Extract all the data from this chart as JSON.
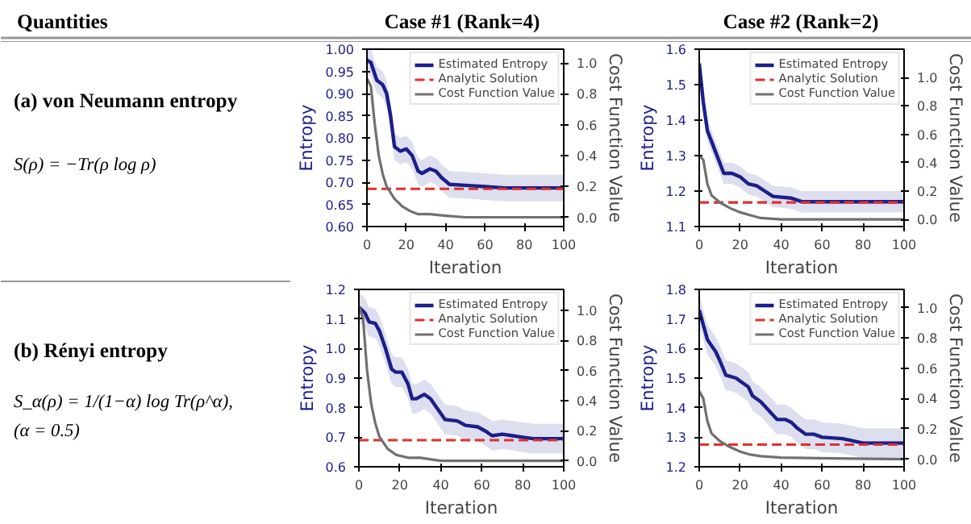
{
  "chart_data": [
    {
      "type": "other",
      "annotations": [
        "Quantities",
        "Case #1 (Rank=4)",
        "Case #2 (Rank=2)",
        "(a) von Neumann entropy",
        "S(ρ) = −Tr(ρ log ρ)",
        "(b) Rényi entropy",
        "S_α(ρ) = 1/(1−α) log Tr(ρ^α),",
        "(α = 0.5)"
      ]
    },
    {
      "type": "line",
      "xlabel": "Iteration",
      "ylabel": "Entropy",
      "y2label": "Cost Function Value",
      "xlim": [
        0,
        100
      ],
      "xticks": [
        0,
        20,
        40,
        60,
        80,
        100
      ],
      "ylim": [
        0.6,
        1.0
      ],
      "yticks": [
        {
          "value": 0.6,
          "label": "0.60"
        },
        {
          "value": 0.65,
          "label": "0.65"
        },
        {
          "value": 0.7,
          "label": "0.70"
        },
        {
          "value": 0.75,
          "label": "0.75"
        },
        {
          "value": 0.8,
          "label": "0.80"
        },
        {
          "value": 0.85,
          "label": "0.85"
        },
        {
          "value": 0.9,
          "label": "0.90"
        },
        {
          "value": 0.95,
          "label": "0.95"
        },
        {
          "value": 1.0,
          "label": "1.00"
        }
      ],
      "y2lim": [
        -0.06,
        1.09
      ],
      "y2ticks": [
        {
          "value": 0,
          "label": "0.0"
        },
        {
          "value": 0.2,
          "label": "0.2"
        },
        {
          "value": 0.4,
          "label": "0.4"
        },
        {
          "value": 0.6,
          "label": "0.6"
        },
        {
          "value": 0.8,
          "label": "0.8"
        },
        {
          "value": 1,
          "label": "1.0"
        }
      ],
      "grid": false,
      "legend": "top right",
      "series": [
        {
          "name": "Estimated Entropy",
          "color": "#1a1f8a",
          "x": [
            0,
            2,
            5,
            8,
            10,
            12,
            14,
            17,
            20,
            23,
            26,
            28,
            32,
            35,
            38,
            42,
            50,
            60,
            70,
            80,
            100
          ],
          "values": [
            0.975,
            0.97,
            0.93,
            0.92,
            0.9,
            0.85,
            0.78,
            0.77,
            0.775,
            0.76,
            0.725,
            0.72,
            0.73,
            0.725,
            0.71,
            0.695,
            0.693,
            0.69,
            0.687,
            0.687,
            0.687
          ],
          "lower": [
            0.945,
            0.94,
            0.9,
            0.89,
            0.87,
            0.82,
            0.75,
            0.74,
            0.745,
            0.73,
            0.695,
            0.69,
            0.7,
            0.695,
            0.68,
            0.665,
            0.663,
            0.66,
            0.657,
            0.657,
            0.657
          ],
          "upper": [
            1.0,
            1.0,
            0.96,
            0.95,
            0.93,
            0.88,
            0.81,
            0.8,
            0.805,
            0.79,
            0.755,
            0.75,
            0.76,
            0.755,
            0.74,
            0.725,
            0.723,
            0.72,
            0.717,
            0.717,
            0.717
          ]
        },
        {
          "name": "Analytic Solution",
          "color": "#e03030",
          "line_style": "dashed",
          "x": [
            0,
            100
          ],
          "values": [
            0.685,
            0.685
          ]
        },
        {
          "name": "Cost Function Value",
          "color": "#707070",
          "axis": "y2",
          "x": [
            0,
            2,
            4,
            6,
            8,
            10,
            14,
            18,
            22,
            26,
            32,
            40,
            50,
            100
          ],
          "values": [
            0.9,
            0.85,
            0.6,
            0.4,
            0.28,
            0.2,
            0.12,
            0.07,
            0.04,
            0.02,
            0.02,
            0.01,
            0.0,
            0.0
          ]
        }
      ]
    },
    {
      "type": "line",
      "xlabel": "Iteration",
      "ylabel": "Entropy",
      "y2label": "Cost Function Value",
      "xlim": [
        0,
        100
      ],
      "xticks": [
        0,
        20,
        40,
        60,
        80,
        100
      ],
      "ylim": [
        1.1,
        1.6
      ],
      "yticks": [
        1.1,
        1.2,
        1.3,
        1.4,
        1.5,
        1.6
      ],
      "y2lim": [
        -0.05,
        1.2
      ],
      "y2ticks": [
        {
          "value": 0,
          "label": "0.0"
        },
        {
          "value": 0.2,
          "label": "0.2"
        },
        {
          "value": 0.4,
          "label": "0.4"
        },
        {
          "value": 0.6,
          "label": "0.6"
        },
        {
          "value": 0.8,
          "label": "0.8"
        },
        {
          "value": 1,
          "label": "1.0"
        }
      ],
      "grid": false,
      "legend": "top right",
      "series": [
        {
          "name": "Estimated Entropy",
          "color": "#1a1f8a",
          "x": [
            0,
            2,
            4,
            6,
            8,
            10,
            12,
            16,
            20,
            24,
            28,
            32,
            36,
            45,
            50,
            100
          ],
          "values": [
            1.56,
            1.45,
            1.37,
            1.34,
            1.31,
            1.28,
            1.25,
            1.25,
            1.24,
            1.22,
            1.215,
            1.2,
            1.185,
            1.18,
            1.17,
            1.17
          ],
          "lower": [
            1.53,
            1.42,
            1.34,
            1.31,
            1.28,
            1.25,
            1.22,
            1.22,
            1.21,
            1.19,
            1.185,
            1.17,
            1.155,
            1.15,
            1.14,
            1.14
          ],
          "upper": [
            1.59,
            1.48,
            1.4,
            1.37,
            1.34,
            1.31,
            1.28,
            1.28,
            1.27,
            1.25,
            1.245,
            1.23,
            1.215,
            1.21,
            1.2,
            1.2
          ]
        },
        {
          "name": "Analytic Solution",
          "color": "#e03030",
          "line_style": "dashed",
          "x": [
            0,
            100
          ],
          "values": [
            1.168,
            1.168
          ]
        },
        {
          "name": "Cost Function Value",
          "color": "#707070",
          "axis": "y2",
          "x": [
            0,
            2,
            4,
            6,
            10,
            15,
            20,
            25,
            30,
            40,
            100
          ],
          "values": [
            0.45,
            0.42,
            0.25,
            0.17,
            0.12,
            0.08,
            0.05,
            0.03,
            0.01,
            0.0,
            0.0
          ]
        }
      ]
    },
    {
      "type": "line",
      "xlabel": "Iteration",
      "ylabel": "Entropy",
      "y2label": "Cost Function Value",
      "xlim": [
        0,
        100
      ],
      "xticks": [
        0,
        20,
        40,
        60,
        80,
        100
      ],
      "ylim": [
        0.6,
        1.2
      ],
      "yticks": [
        0.6,
        0.7,
        0.8,
        0.9,
        {
          "value": 1.0,
          "label": "1.0"
        },
        1.1,
        1.2
      ],
      "y2lim": [
        -0.04,
        1.14
      ],
      "y2ticks": [
        {
          "value": 0,
          "label": "0.0"
        },
        {
          "value": 0.2,
          "label": "0.2"
        },
        {
          "value": 0.4,
          "label": "0.4"
        },
        {
          "value": 0.6,
          "label": "0.6"
        },
        {
          "value": 0.8,
          "label": "0.8"
        },
        {
          "value": 1,
          "label": "1.0"
        }
      ],
      "grid": false,
      "legend": "top right",
      "series": [
        {
          "name": "Estimated Entropy",
          "color": "#1a1f8a",
          "x": [
            0,
            3,
            5,
            8,
            10,
            13,
            16,
            18,
            21,
            24,
            26,
            28,
            32,
            35,
            38,
            42,
            48,
            52,
            58,
            62,
            65,
            70,
            75,
            80,
            85,
            100
          ],
          "values": [
            1.14,
            1.12,
            1.09,
            1.085,
            1.06,
            1.0,
            0.93,
            0.92,
            0.92,
            0.88,
            0.83,
            0.83,
            0.845,
            0.83,
            0.8,
            0.76,
            0.755,
            0.74,
            0.735,
            0.72,
            0.705,
            0.71,
            0.705,
            0.7,
            0.695,
            0.695
          ],
          "lower": [
            1.09,
            1.07,
            1.04,
            1.035,
            1.01,
            0.95,
            0.88,
            0.87,
            0.87,
            0.83,
            0.78,
            0.78,
            0.795,
            0.78,
            0.75,
            0.71,
            0.705,
            0.69,
            0.685,
            0.67,
            0.655,
            0.66,
            0.655,
            0.65,
            0.645,
            0.645
          ],
          "upper": [
            1.19,
            1.17,
            1.14,
            1.135,
            1.11,
            1.05,
            0.98,
            0.97,
            0.97,
            0.93,
            0.88,
            0.88,
            0.895,
            0.88,
            0.85,
            0.81,
            0.805,
            0.79,
            0.785,
            0.77,
            0.755,
            0.76,
            0.755,
            0.75,
            0.745,
            0.745
          ]
        },
        {
          "name": "Analytic Solution",
          "color": "#e03030",
          "line_style": "dashed",
          "x": [
            0,
            100
          ],
          "values": [
            0.69,
            0.69
          ]
        },
        {
          "name": "Cost Function Value",
          "color": "#707070",
          "axis": "y2",
          "x": [
            0,
            2,
            4,
            6,
            8,
            10,
            14,
            18,
            24,
            30,
            40,
            100
          ],
          "values": [
            1.03,
            0.95,
            0.6,
            0.38,
            0.25,
            0.16,
            0.08,
            0.04,
            0.02,
            0.02,
            0.0,
            0.0
          ]
        }
      ]
    },
    {
      "type": "line",
      "xlabel": "Iteration",
      "ylabel": "Entropy",
      "y2label": "Cost Function Value",
      "xlim": [
        0,
        100
      ],
      "xticks": [
        0,
        20,
        40,
        60,
        80,
        100
      ],
      "ylim": [
        1.2,
        1.8
      ],
      "yticks": [
        1.2,
        1.3,
        1.4,
        1.5,
        1.6,
        1.7,
        1.8
      ],
      "y2lim": [
        -0.05,
        1.12
      ],
      "y2ticks": [
        {
          "value": 0,
          "label": "0.0"
        },
        {
          "value": 0.2,
          "label": "0.2"
        },
        {
          "value": 0.4,
          "label": "0.4"
        },
        {
          "value": 0.6,
          "label": "0.6"
        },
        {
          "value": 0.8,
          "label": "0.8"
        },
        {
          "value": 1,
          "label": "1.0"
        }
      ],
      "grid": false,
      "legend": "top right",
      "series": [
        {
          "name": "Estimated Entropy",
          "color": "#1a1f8a",
          "x": [
            0,
            2,
            4,
            6,
            8,
            10,
            13,
            18,
            20,
            24,
            26,
            30,
            34,
            38,
            42,
            45,
            48,
            52,
            56,
            60,
            70,
            80,
            100
          ],
          "values": [
            1.73,
            1.68,
            1.63,
            1.61,
            1.59,
            1.56,
            1.51,
            1.5,
            1.49,
            1.47,
            1.44,
            1.42,
            1.39,
            1.36,
            1.36,
            1.35,
            1.33,
            1.31,
            1.31,
            1.3,
            1.295,
            1.28,
            1.28
          ],
          "lower": [
            1.68,
            1.63,
            1.58,
            1.56,
            1.54,
            1.51,
            1.46,
            1.45,
            1.44,
            1.42,
            1.39,
            1.37,
            1.34,
            1.31,
            1.31,
            1.3,
            1.28,
            1.26,
            1.26,
            1.25,
            1.245,
            1.23,
            1.23
          ],
          "upper": [
            1.78,
            1.73,
            1.68,
            1.66,
            1.64,
            1.61,
            1.56,
            1.55,
            1.54,
            1.52,
            1.49,
            1.47,
            1.44,
            1.41,
            1.41,
            1.4,
            1.38,
            1.36,
            1.36,
            1.35,
            1.345,
            1.33,
            1.33
          ]
        },
        {
          "name": "Analytic Solution",
          "color": "#e03030",
          "line_style": "dashed",
          "x": [
            0,
            100
          ],
          "values": [
            1.275,
            1.275
          ]
        },
        {
          "name": "Cost Function Value",
          "color": "#707070",
          "axis": "y2",
          "x": [
            0,
            2,
            4,
            6,
            10,
            15,
            20,
            25,
            30,
            40,
            100
          ],
          "values": [
            0.45,
            0.4,
            0.25,
            0.17,
            0.12,
            0.08,
            0.05,
            0.03,
            0.02,
            0.01,
            0.0
          ]
        }
      ]
    }
  ]
}
